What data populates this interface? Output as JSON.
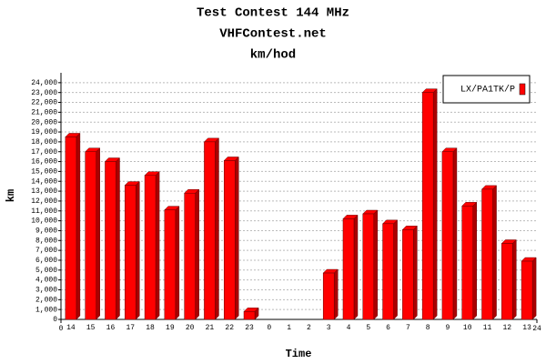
{
  "chart_data": {
    "type": "bar",
    "title": "Test Contest 144 MHz",
    "subtitle": "VHFContest.net",
    "unit_title": "km/hod",
    "xlabel": "Time",
    "ylabel": "km",
    "categories": [
      "14",
      "15",
      "16",
      "17",
      "18",
      "19",
      "20",
      "21",
      "22",
      "23",
      "0",
      "1",
      "2",
      "3",
      "4",
      "5",
      "6",
      "7",
      "8",
      "9",
      "10",
      "11",
      "12",
      "13"
    ],
    "series": [
      {
        "name": "LX/PA1TK/P",
        "color": "#ff0000",
        "values": [
          18500,
          17000,
          16000,
          13600,
          14600,
          11100,
          12800,
          18000,
          16100,
          800,
          0,
          0,
          0,
          4700,
          10200,
          10700,
          9700,
          9100,
          23000,
          17000,
          11500,
          13200,
          7700,
          5900
        ]
      }
    ],
    "xlim": [
      0,
      24
    ],
    "xticks": [
      0,
      24
    ],
    "ylim": [
      0,
      25000
    ],
    "yticks": [
      0,
      {
        "value": 1000,
        "label": "1,000"
      },
      {
        "value": 2000,
        "label": "2,000"
      },
      {
        "value": 3000,
        "label": "3,000"
      },
      {
        "value": 4000,
        "label": "4,000"
      },
      {
        "value": 5000,
        "label": "5,000"
      },
      {
        "value": 6000,
        "label": "6,000"
      },
      {
        "value": 7000,
        "label": "7,000"
      },
      {
        "value": 8000,
        "label": "8,000"
      },
      {
        "value": 9000,
        "label": "9,000"
      },
      {
        "value": 10000,
        "label": "10,000"
      },
      {
        "value": 11000,
        "label": "11,000"
      },
      {
        "value": 12000,
        "label": "12,000"
      },
      {
        "value": 13000,
        "label": "13,000"
      },
      {
        "value": 14000,
        "label": "14,000"
      },
      {
        "value": 15000,
        "label": "15,000"
      },
      {
        "value": 16000,
        "label": "16,000"
      },
      {
        "value": 17000,
        "label": "17,000"
      },
      {
        "value": 18000,
        "label": "18,000"
      },
      {
        "value": 19000,
        "label": "19,000"
      },
      {
        "value": 20000,
        "label": "20,000"
      },
      {
        "value": 21000,
        "label": "21,000"
      },
      {
        "value": 22000,
        "label": "22,000"
      },
      {
        "value": 23000,
        "label": "23,000"
      },
      {
        "value": 24000,
        "label": "24,000"
      }
    ],
    "grid": true,
    "legend": "top-right"
  }
}
